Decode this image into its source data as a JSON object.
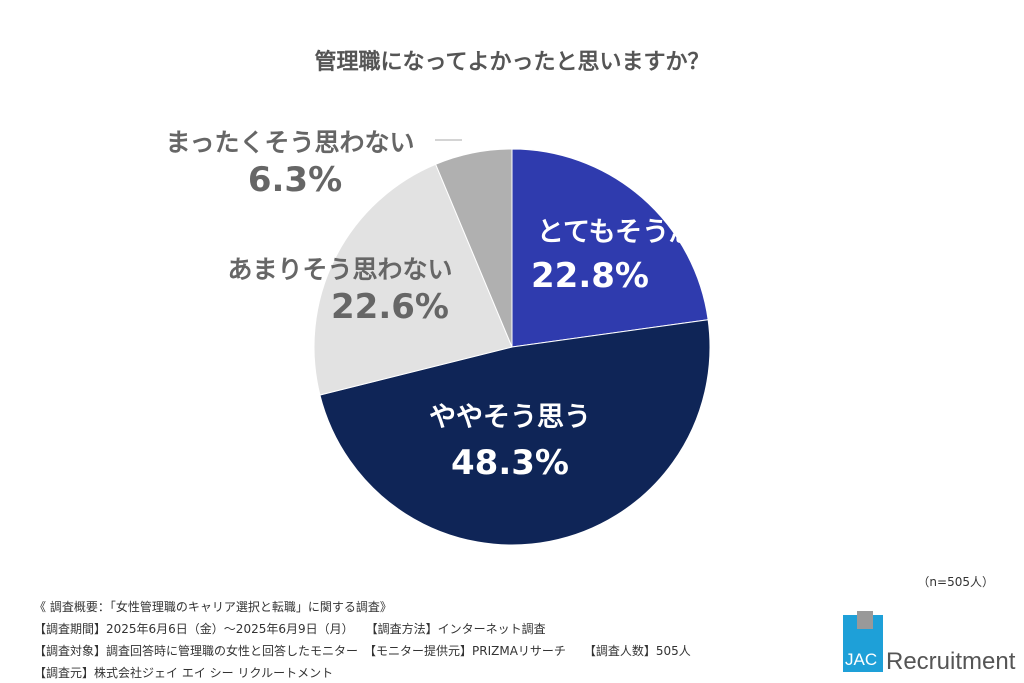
{
  "chart_data": {
    "type": "pie",
    "title": "管理職になってよかったと思いますか？",
    "start": "top, clockwise",
    "slices": [
      {
        "label": "とてもそう思う",
        "value": 22.8,
        "display": "22.8%",
        "color": "#2f3bae",
        "text_color": "#ffffff"
      },
      {
        "label": "ややそう思う",
        "value": 48.3,
        "display": "48.3%",
        "color": "#0f2557",
        "text_color": "#ffffff"
      },
      {
        "label": "あまりそう思わない",
        "value": 22.6,
        "display": "22.6%",
        "color": "#e2e2e2",
        "text_color": "#666666"
      },
      {
        "label": "まったくそう思わない",
        "value": 6.3,
        "display": "6.3%",
        "color": "#b0b0b0",
        "text_color": "#666666"
      }
    ],
    "sample_size": "（n=505人）"
  },
  "footer": {
    "lines": [
      "《 調査概要：「女性管理職のキャリア選択と転職」に関する調査》",
      "【調査期間】2025年6月6日（金）～2025年6月9日（月）　　【調査方法】インターネット調査",
      "【調査対象】調査回答時に管理職の女性と回答したモニター　【モニター提供元】PRIZMAリサーチ　　【調査人数】505人",
      "【調査元】株式会社ジェイ エイ シー リクルートメント"
    ]
  },
  "logo": {
    "mark": "JAC",
    "text": "Recruitment",
    "color": "#1ea0d8"
  }
}
